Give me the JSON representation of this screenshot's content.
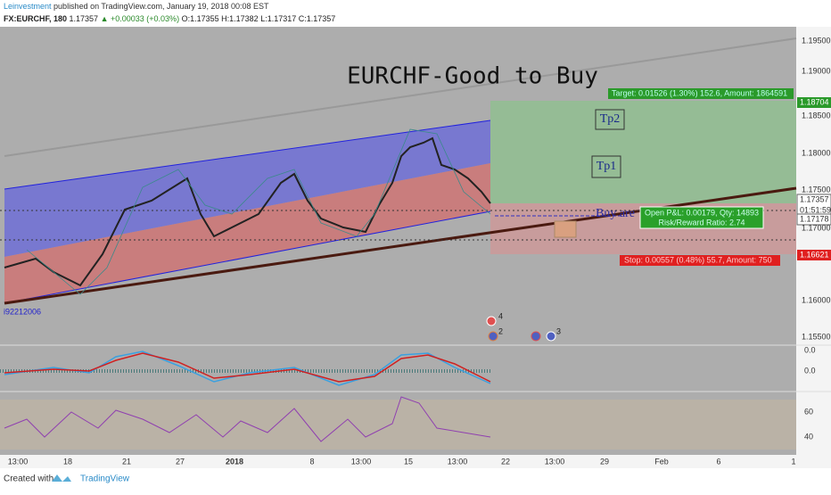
{
  "header": {
    "publisher": "Leinvestment",
    "published": "published on TradingView.com, January 19, 2018 00:08 EST",
    "symbol": "FX:EURCHF, 180",
    "last": "1.17357",
    "change": "▲ +0.00033 (+0.03%)",
    "ohlc": [
      "O:1.17355",
      "H:1.17382",
      "L:1.17317",
      "C:1.17357"
    ]
  },
  "chart": {
    "title": "EURCHF-Good to Buy",
    "target": "Target: 0.01526 (1.30%) 152.6, Amount: 1864591",
    "tp2": "Tp2",
    "tp1": "Tp1",
    "buy": "Buy are",
    "position": [
      "Open P&L: 0.00179, Qty: 14893",
      "Risk/Reward Ratio: 2.74"
    ],
    "stop": "Stop: 0.00557 (0.48%) 55.7, Amount: 750",
    "indicator": "i92212006",
    "markers": [
      "4",
      "2",
      "3"
    ]
  },
  "price_axis": [
    "1.19500",
    "1.19000",
    "1.18704",
    "1.18500",
    "1.18000",
    "1.17500",
    "1.17357",
    "01:51:59",
    "1.17178",
    "1.17000",
    "1.16621",
    "1.16000",
    "1.15500"
  ],
  "macd_axis": [
    "0.0",
    "0.0"
  ],
  "rsi_axis": [
    "60",
    "40"
  ],
  "time_axis": [
    "13:00",
    "18",
    "21",
    "27",
    "2018",
    "8",
    "13:00",
    "15",
    "13:00",
    "22",
    "13:00",
    "29",
    "Feb",
    "6",
    "1"
  ],
  "footer": {
    "created": "Created with",
    "brand": "TradingView"
  }
}
